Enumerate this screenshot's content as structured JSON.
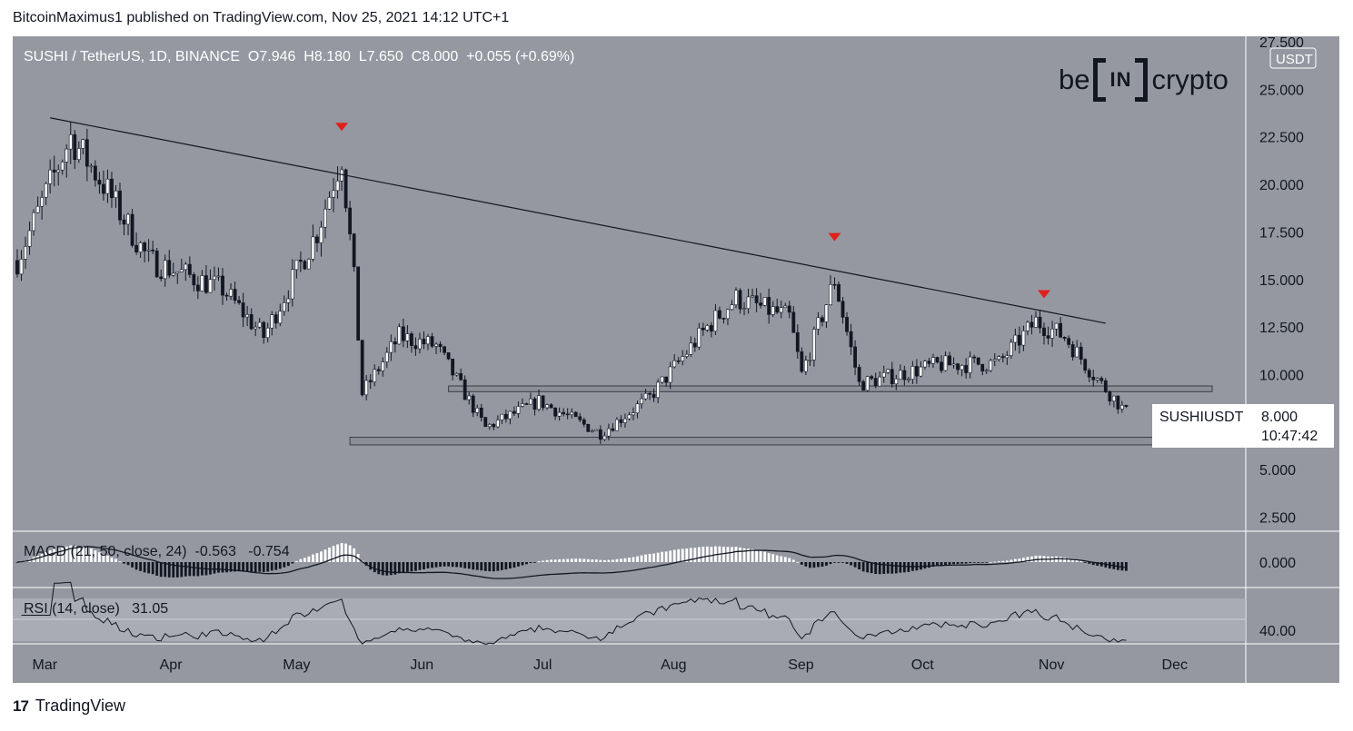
{
  "header": {
    "published_text": "BitcoinMaximus1 published on TradingView.com, Nov 25, 2021 14:12 UTC+1"
  },
  "legend": {
    "symbol": "SUSHI / TetherUS, 1D, BINANCE",
    "o_label": "O",
    "o_value": "7.946",
    "h_label": "H",
    "h_value": "8.180",
    "l_label": "L",
    "l_value": "7.650",
    "c_label": "C",
    "c_value": "8.000",
    "change": "+0.055 (+0.69%)"
  },
  "logo": {
    "left": "be",
    "middle": "IN",
    "right": "crypto"
  },
  "currency_badge": "USDT",
  "last_price": {
    "symbol": "SUSHIUSDT",
    "price": "8.000",
    "countdown": "10:47:42"
  },
  "macd": {
    "label": "MACD (21, 50, close, 24)",
    "v1": "-0.563",
    "v2": "-0.754"
  },
  "rsi": {
    "label": "RSI (14, close)",
    "value": "31.05"
  },
  "footer": {
    "brand": "TradingView",
    "icon": "tradingview-logo-icon"
  },
  "colors": {
    "background": "#9598a1",
    "bull": "#ffffff",
    "bear": "#131722",
    "marker": "#e0201b",
    "zone": "#8d8f98"
  },
  "chart_data": {
    "type": "candlestick",
    "title": "SUSHI / TetherUS, 1D, BINANCE",
    "x_tick_labels": [
      "Mar",
      "Apr",
      "May",
      "Jun",
      "Jul",
      "Aug",
      "Sep",
      "Oct",
      "Nov",
      "Dec"
    ],
    "y_tick_labels": [
      "27.500",
      "25.000",
      "22.500",
      "20.000",
      "17.500",
      "15.000",
      "12.500",
      "10.000",
      "5.000",
      "2.500"
    ],
    "ylim": [
      2.5,
      27.5
    ],
    "closes_approx": [
      {
        "date": "2021-02-28",
        "close": 16.0
      },
      {
        "date": "2021-03-13",
        "close": 22.5
      },
      {
        "date": "2021-03-21",
        "close": 20.0
      },
      {
        "date": "2021-04-01",
        "close": 16.0
      },
      {
        "date": "2021-04-19",
        "close": 14.5
      },
      {
        "date": "2021-04-29",
        "close": 12.0
      },
      {
        "date": "2021-05-12",
        "close": 17.5
      },
      {
        "date": "2021-05-18",
        "close": 21.5
      },
      {
        "date": "2021-05-21",
        "close": 15.0
      },
      {
        "date": "2021-05-23",
        "close": 9.0
      },
      {
        "date": "2021-06-01",
        "close": 12.0
      },
      {
        "date": "2021-06-10",
        "close": 11.5
      },
      {
        "date": "2021-06-22",
        "close": 7.2
      },
      {
        "date": "2021-07-05",
        "close": 8.6
      },
      {
        "date": "2021-07-20",
        "close": 6.9
      },
      {
        "date": "2021-08-01",
        "close": 8.8
      },
      {
        "date": "2021-08-15",
        "close": 12.5
      },
      {
        "date": "2021-08-22",
        "close": 14.0
      },
      {
        "date": "2021-09-04",
        "close": 13.0
      },
      {
        "date": "2021-09-07",
        "close": 10.0
      },
      {
        "date": "2021-09-15",
        "close": 15.0
      },
      {
        "date": "2021-09-21",
        "close": 9.5
      },
      {
        "date": "2021-10-10",
        "close": 10.5
      },
      {
        "date": "2021-10-25",
        "close": 10.6
      },
      {
        "date": "2021-11-03",
        "close": 12.8
      },
      {
        "date": "2021-11-10",
        "close": 12.0
      },
      {
        "date": "2021-11-17",
        "close": 10.0
      },
      {
        "date": "2021-11-25",
        "close": 8.0
      }
    ],
    "descending_trendline": [
      {
        "date": "2021-03-08",
        "value": 23.5
      },
      {
        "date": "2021-11-20",
        "value": 12.7
      }
    ],
    "horizontal_zones": [
      {
        "label": "resistance-zone",
        "low": 9.1,
        "high": 9.4
      },
      {
        "label": "support-zone",
        "low": 6.3,
        "high": 6.7
      }
    ],
    "rejection_markers": [
      {
        "date": "2021-05-18",
        "value": 23.0
      },
      {
        "date": "2021-09-15",
        "value": 17.2
      },
      {
        "date": "2021-11-05",
        "value": 14.2
      }
    ],
    "macd": {
      "params": "21, 50, close, 24",
      "macd": -0.563,
      "signal": -0.754,
      "ytick": "0.000"
    },
    "rsi": {
      "params": "14, close",
      "value": 31.05,
      "ytick": "40.00"
    }
  }
}
